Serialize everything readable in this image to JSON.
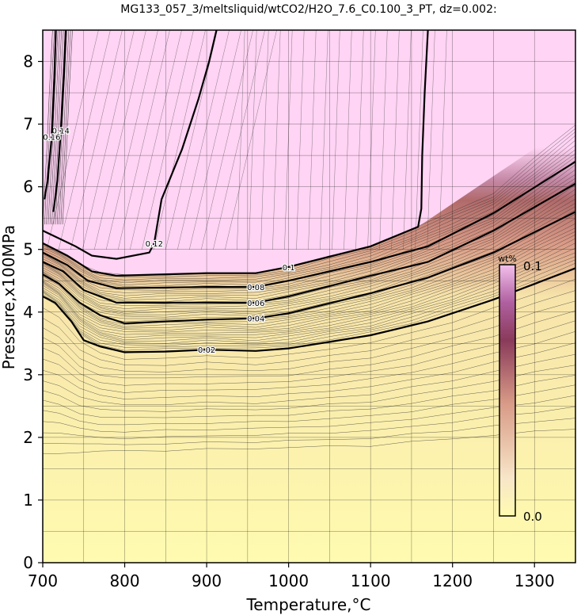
{
  "chart_data": {
    "type": "contour",
    "title": "MG133_057_3/meltsliquid/wtCO2/H2O_7.6_C0.100_3_PT, dz=0.002:",
    "xlabel": "Temperature,°C",
    "ylabel": "Pressure,x100MPa",
    "xlim": [
      700,
      1350
    ],
    "ylim": [
      0,
      8.5
    ],
    "xticks": [
      700,
      800,
      900,
      1000,
      1100,
      1200,
      1300
    ],
    "yticks": [
      0,
      1,
      2,
      3,
      4,
      5,
      6,
      7,
      8
    ],
    "grid": true,
    "contour_interval": 0.002,
    "colorbar": {
      "label": "wt%",
      "min": 0.0,
      "max": 0.1,
      "min_label": "0.0",
      "max_label": "0.1",
      "colors": [
        "#fffbb0",
        "#f5dcaa",
        "#dea58c",
        "#b06a6a",
        "#8a3a5a",
        "#b060a0",
        "#f0bbe8",
        "#ffd4f4"
      ]
    },
    "labeled_contours": [
      {
        "level": 0.02,
        "label": "0.02",
        "points": [
          [
            700,
            4.25
          ],
          [
            715,
            4.15
          ],
          [
            735,
            3.85
          ],
          [
            750,
            3.55
          ],
          [
            770,
            3.45
          ],
          [
            800,
            3.36
          ],
          [
            850,
            3.37
          ],
          [
            900,
            3.4
          ],
          [
            960,
            3.38
          ],
          [
            1000,
            3.42
          ],
          [
            1100,
            3.63
          ],
          [
            1170,
            3.85
          ],
          [
            1250,
            4.2
          ],
          [
            1350,
            4.7
          ]
        ]
      },
      {
        "level": 0.04,
        "label": "0.04",
        "points": [
          [
            700,
            4.6
          ],
          [
            720,
            4.45
          ],
          [
            745,
            4.15
          ],
          [
            770,
            3.95
          ],
          [
            800,
            3.82
          ],
          [
            900,
            3.88
          ],
          [
            960,
            3.9
          ],
          [
            1000,
            3.98
          ],
          [
            1100,
            4.3
          ],
          [
            1170,
            4.55
          ],
          [
            1250,
            4.95
          ],
          [
            1350,
            5.6
          ]
        ]
      },
      {
        "level": 0.06,
        "label": "0.06",
        "points": [
          [
            700,
            4.8
          ],
          [
            725,
            4.65
          ],
          [
            750,
            4.35
          ],
          [
            790,
            4.15
          ],
          [
            900,
            4.15
          ],
          [
            960,
            4.15
          ],
          [
            1000,
            4.25
          ],
          [
            1100,
            4.58
          ],
          [
            1170,
            4.8
          ],
          [
            1250,
            5.3
          ],
          [
            1350,
            6.05
          ]
        ]
      },
      {
        "level": 0.08,
        "label": "0.08",
        "points": [
          [
            700,
            4.95
          ],
          [
            730,
            4.75
          ],
          [
            755,
            4.5
          ],
          [
            790,
            4.38
          ],
          [
            900,
            4.4
          ],
          [
            960,
            4.4
          ],
          [
            1000,
            4.5
          ],
          [
            1100,
            4.8
          ],
          [
            1170,
            5.05
          ],
          [
            1250,
            5.58
          ],
          [
            1350,
            6.4
          ]
        ]
      },
      {
        "level": 0.1,
        "label": "0.1",
        "points": [
          [
            700,
            5.1
          ],
          [
            730,
            4.9
          ],
          [
            760,
            4.65
          ],
          [
            790,
            4.58
          ],
          [
            900,
            4.62
          ],
          [
            960,
            4.62
          ],
          [
            1000,
            4.72
          ],
          [
            1100,
            5.05
          ],
          [
            1158,
            5.36
          ],
          [
            1162,
            5.65
          ],
          [
            1163,
            6.5
          ],
          [
            1166,
            7.5
          ],
          [
            1170,
            8.5
          ]
        ]
      },
      {
        "level": 0.12,
        "label": "0.12",
        "points": [
          [
            700,
            5.3
          ],
          [
            740,
            5.05
          ],
          [
            760,
            4.9
          ],
          [
            790,
            4.85
          ],
          [
            830,
            4.95
          ],
          [
            836,
            5.1
          ],
          [
            845,
            5.8
          ],
          [
            870,
            6.6
          ],
          [
            890,
            7.4
          ],
          [
            903,
            8.0
          ],
          [
            912,
            8.5
          ]
        ]
      },
      {
        "level": 0.14,
        "label": "0.14",
        "points": [
          [
            728,
            8.5
          ],
          [
            726,
            7.8
          ],
          [
            722,
            6.9
          ],
          [
            718,
            6.1
          ],
          [
            713,
            5.6
          ]
        ]
      },
      {
        "level": 0.16,
        "label": "0.16",
        "points": [
          [
            716,
            8.5
          ],
          [
            714,
            7.7
          ],
          [
            711,
            6.8
          ],
          [
            706,
            6.1
          ],
          [
            702,
            5.8
          ]
        ]
      }
    ]
  }
}
